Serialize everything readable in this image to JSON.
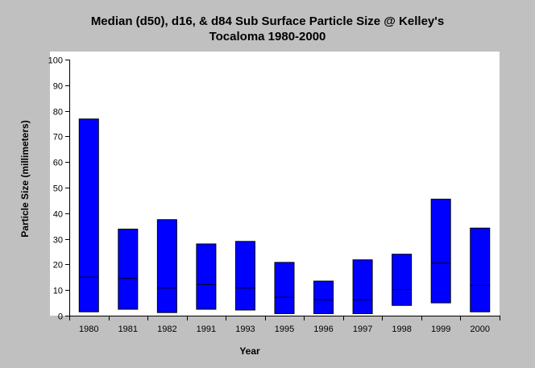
{
  "chart_data": {
    "type": "bar",
    "subtype": "floating-range",
    "title_line1": "Median (d50), d16, & d84 Sub Surface Particle Size @ Kelley's",
    "title_line2": "Tocaloma 1980-2000",
    "xlabel": "Year",
    "ylabel": "Particle Size (millimeters)",
    "ylim": [
      0,
      100
    ],
    "yticks": [
      0,
      10,
      20,
      30,
      40,
      50,
      60,
      70,
      80,
      90,
      100
    ],
    "grid": false,
    "legend": "none",
    "categories": [
      "1980",
      "1981",
      "1982",
      "1991",
      "1993",
      "1995",
      "1996",
      "1997",
      "1998",
      "1999",
      "2000"
    ],
    "d16": [
      1.5,
      2.5,
      1.2,
      2.5,
      2.2,
      0.8,
      0.8,
      0.8,
      4.0,
      5.0,
      1.5
    ],
    "d50": [
      15.0,
      14.5,
      10.8,
      12.2,
      10.8,
      7.2,
      6.2,
      6.2,
      10.2,
      20.5,
      11.8
    ],
    "d84": [
      76.8,
      33.8,
      37.5,
      28.0,
      29.0,
      20.8,
      13.5,
      21.8,
      24.0,
      45.5,
      34.2
    ],
    "colors": {
      "bar": "#0000ff",
      "background": "#c0c0c0",
      "plot": "#ffffff"
    }
  }
}
